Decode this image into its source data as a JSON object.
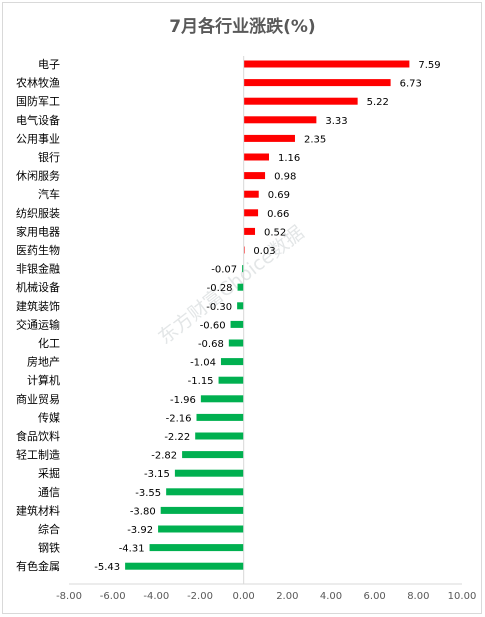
{
  "chart_data": {
    "type": "bar",
    "orientation": "horizontal",
    "title": "7月各行业涨跌(%)",
    "categories": [
      "电子",
      "农林牧渔",
      "国防军工",
      "电气设备",
      "公用事业",
      "银行",
      "休闲服务",
      "汽车",
      "纺织服装",
      "家用电器",
      "医药生物",
      "非银金融",
      "机械设备",
      "建筑装饰",
      "交通运输",
      "化工",
      "房地产",
      "计算机",
      "商业贸易",
      "传媒",
      "食品饮料",
      "轻工制造",
      "采掘",
      "通信",
      "建筑材料",
      "综合",
      "钢铁",
      "有色金属"
    ],
    "values": [
      7.59,
      6.73,
      5.22,
      3.33,
      2.35,
      1.16,
      0.98,
      0.69,
      0.66,
      0.52,
      0.03,
      -0.07,
      -0.28,
      -0.3,
      -0.6,
      -0.68,
      -1.04,
      -1.15,
      -1.96,
      -2.16,
      -2.22,
      -2.82,
      -3.15,
      -3.55,
      -3.8,
      -3.92,
      -4.31,
      -5.43
    ],
    "value_labels": [
      "7.59",
      "6.73",
      "5.22",
      "3.33",
      "2.35",
      "1.16",
      "0.98",
      "0.69",
      "0.66",
      "0.52",
      "0.03",
      "-0.07",
      "-0.28",
      "-0.30",
      "-0.60",
      "-0.68",
      "-1.04",
      "-1.15",
      "-1.96",
      "-2.16",
      "-2.22",
      "-2.82",
      "-3.15",
      "-3.55",
      "-3.80",
      "-3.92",
      "-4.31",
      "-5.43"
    ],
    "xlim": [
      -8,
      10
    ],
    "xticks": [
      -8,
      -6,
      -4,
      -2,
      0,
      2,
      4,
      6,
      8,
      10
    ],
    "xtick_labels": [
      "-8.00",
      "-6.00",
      "-4.00",
      "-2.00",
      "0.00",
      "2.00",
      "4.00",
      "6.00",
      "8.00",
      "10.00"
    ],
    "xlabel": "",
    "ylabel": "",
    "grid": false,
    "legend": "none",
    "colors": {
      "positive": "#ff0000",
      "negative": "#00b050",
      "axis": "#d9d9d9"
    }
  },
  "watermark": "东方财富Choice数据"
}
